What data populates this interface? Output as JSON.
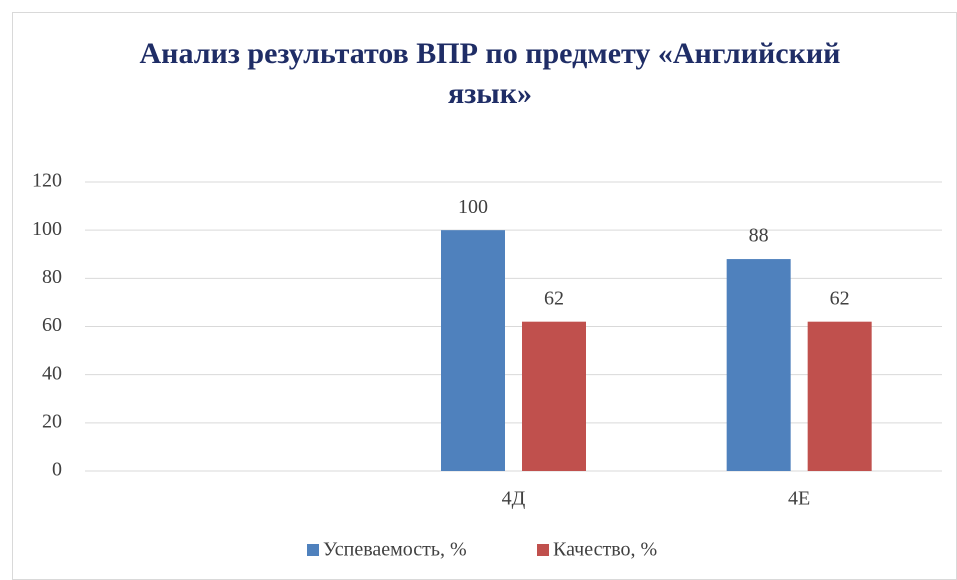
{
  "chart_data": {
    "type": "bar",
    "title": "Анализ результатов ВПР по предмету «Английский язык»",
    "categories": [
      null,
      "4Д",
      "4Е"
    ],
    "series": [
      {
        "name": "Успеваемость, %",
        "color": "#4f81bd",
        "values": [
          null,
          100,
          88
        ]
      },
      {
        "name": "Качество, %",
        "color": "#c0504d",
        "values": [
          null,
          62,
          62
        ]
      }
    ],
    "ylim": [
      0,
      120
    ],
    "yticks": [
      0,
      20,
      40,
      60,
      80,
      100,
      120
    ],
    "grid": true,
    "legend": "bottom"
  }
}
